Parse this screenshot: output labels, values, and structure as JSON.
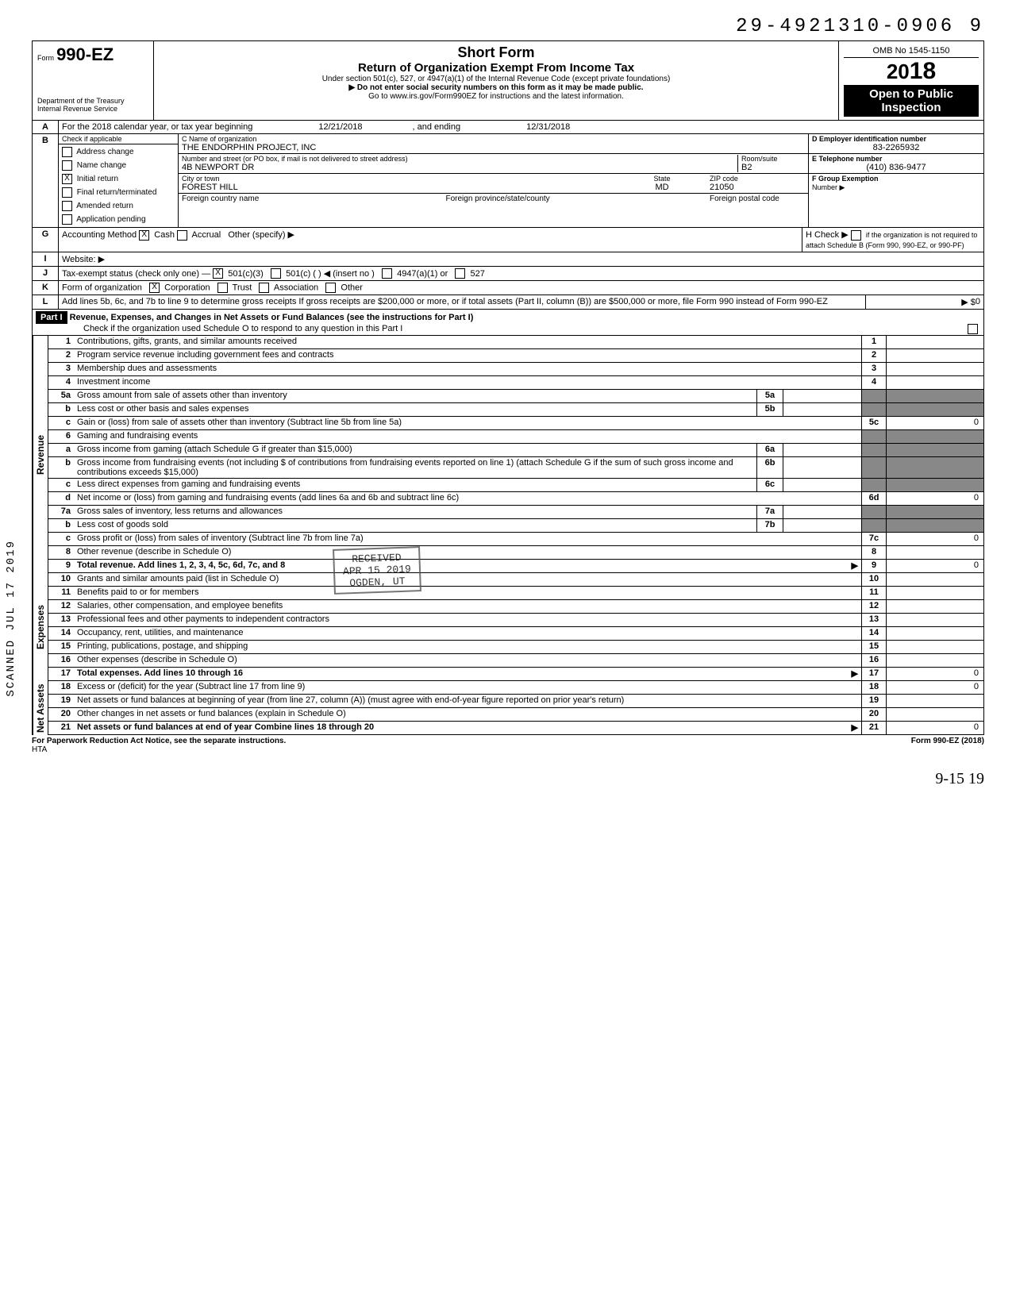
{
  "dln": "29-4921310-0906  9",
  "header": {
    "form_prefix": "Form",
    "form_number": "990-EZ",
    "dept": "Department of the Treasury",
    "irs": "Internal Revenue Service",
    "title1": "Short Form",
    "title2": "Return of Organization Exempt From Income Tax",
    "under": "Under section 501(c), 527, or 4947(a)(1) of the Internal Revenue Code (except private foundations)",
    "ssn_warn": "▶  Do not enter social security numbers on this form as it may be made public.",
    "goto": "Go to www.irs.gov/Form990EZ for instructions and the latest information.",
    "omb": "OMB No 1545-1150",
    "year_prefix": "20",
    "year_bold": "18",
    "open1": "Open to Public",
    "open2": "Inspection"
  },
  "lineA": {
    "label": "For the 2018 calendar year, or tax year beginning",
    "begin": "12/21/2018",
    "mid": ", and ending",
    "end": "12/31/2018"
  },
  "B": {
    "head": "Check if applicable",
    "items": [
      {
        "label": "Address change",
        "checked": false
      },
      {
        "label": "Name change",
        "checked": false
      },
      {
        "label": "Initial return",
        "checked": true
      },
      {
        "label": "Final return/terminated",
        "checked": false
      },
      {
        "label": "Amended return",
        "checked": false
      },
      {
        "label": "Application pending",
        "checked": false
      }
    ]
  },
  "C": {
    "name_label": "C  Name of organization",
    "name": "THE ENDORPHIN PROJECT, INC",
    "addr_label": "Number and street (or PO box, if mail is not delivered to street address)",
    "addr": "4B NEWPORT DR",
    "room_label": "Room/suite",
    "room": "B2",
    "city_label": "City or town",
    "city": "FOREST HILL",
    "state_label": "State",
    "state": "MD",
    "zip_label": "ZIP code",
    "zip": "21050",
    "foreign_country": "Foreign country name",
    "foreign_prov": "Foreign province/state/county",
    "foreign_postal": "Foreign postal code"
  },
  "D": {
    "label": "D  Employer identification number",
    "value": "83-2265932"
  },
  "E": {
    "label": "E  Telephone number",
    "value": "(410) 836-9477"
  },
  "F": {
    "label": "F  Group Exemption",
    "label2": "Number ▶"
  },
  "G": {
    "label": "Accounting Method",
    "cash": "Cash",
    "accrual": "Accrual",
    "other": "Other (specify) ▶"
  },
  "H": {
    "label": "H  Check ▶",
    "text": "if the organization is not required to attach Schedule B (Form 990, 990-EZ, or 990-PF)"
  },
  "I": {
    "label": "Website: ▶"
  },
  "J": {
    "label": "Tax-exempt status (check only one) —",
    "c3": "501(c)(3)",
    "c": "501(c) (",
    "insert": ") ◀ (insert no )",
    "a1": "4947(a)(1) or",
    "s527": "527"
  },
  "K": {
    "label": "Form of organization",
    "corp": "Corporation",
    "trust": "Trust",
    "assoc": "Association",
    "other": "Other"
  },
  "L": {
    "text": "Add lines 5b, 6c, and 7b to line 9 to determine gross receipts  If gross receipts are $200,000 or more, or if total assets (Part II, column (B)) are $500,000 or more, file Form 990 instead of Form 990-EZ",
    "arrow": "▶ $",
    "value": "0"
  },
  "part1": {
    "tag": "Part I",
    "title": "Revenue, Expenses, and Changes in Net Assets or Fund Balances (see the instructions for Part I)",
    "check": "Check if the organization used Schedule O to respond to any question in this Part I"
  },
  "stamp": {
    "l1": "RECEIVED",
    "l2": "APR 15 2019",
    "l3": "OGDEN, UT"
  },
  "side_stamp": "SCANNED  JUL 17 2019",
  "lines": [
    {
      "n": "1",
      "desc": "Contributions, gifts, grants, and similar amounts received",
      "num": "1",
      "amt": ""
    },
    {
      "n": "2",
      "desc": "Program service revenue including government fees and contracts",
      "num": "2",
      "amt": ""
    },
    {
      "n": "3",
      "desc": "Membership dues and assessments",
      "num": "3",
      "amt": ""
    },
    {
      "n": "4",
      "desc": "Investment income",
      "num": "4",
      "amt": ""
    },
    {
      "n": "5a",
      "desc": "Gross amount from sale of assets other than inventory",
      "mid_n": "5a",
      "mid_a": "",
      "shade": true
    },
    {
      "n": "b",
      "desc": "Less  cost or other basis and sales expenses",
      "mid_n": "5b",
      "mid_a": "",
      "shade": true
    },
    {
      "n": "c",
      "desc": "Gain or (loss) from sale of assets other than inventory (Subtract line 5b from line 5a)",
      "num": "5c",
      "amt": "0"
    },
    {
      "n": "6",
      "desc": "Gaming and fundraising events",
      "shade": true
    },
    {
      "n": "a",
      "desc": "Gross income from gaming (attach Schedule G if greater than $15,000)",
      "mid_n": "6a",
      "mid_a": "",
      "shade": true
    },
    {
      "n": "b",
      "desc": "Gross income from fundraising events (not including     $                  of contributions from fundraising events reported on line 1) (attach Schedule G if the sum of such gross income and contributions exceeds $15,000)",
      "mid_n": "6b",
      "mid_a": "",
      "shade": true
    },
    {
      "n": "c",
      "desc": "Less  direct expenses from gaming and fundraising events",
      "mid_n": "6c",
      "mid_a": "",
      "shade": true
    },
    {
      "n": "d",
      "desc": "Net income or (loss) from gaming and fundraising events (add lines 6a and 6b and subtract line 6c)",
      "num": "6d",
      "amt": "0"
    },
    {
      "n": "7a",
      "desc": "Gross sales of inventory, less returns and allowances",
      "mid_n": "7a",
      "mid_a": "",
      "shade": true
    },
    {
      "n": "b",
      "desc": "Less  cost of goods sold",
      "mid_n": "7b",
      "mid_a": "",
      "shade": true
    },
    {
      "n": "c",
      "desc": "Gross profit or (loss) from sales of inventory (Subtract line 7b from line 7a)",
      "num": "7c",
      "amt": "0"
    },
    {
      "n": "8",
      "desc": "Other revenue (describe in Schedule O)",
      "num": "8",
      "amt": ""
    },
    {
      "n": "9",
      "desc": "Total revenue. Add lines 1, 2, 3, 4, 5c, 6d, 7c, and 8",
      "arrow": "▶",
      "num": "9",
      "amt": "0",
      "bold": true
    }
  ],
  "exp_lines": [
    {
      "n": "10",
      "desc": "Grants and similar amounts paid (list in Schedule O)",
      "num": "10",
      "amt": ""
    },
    {
      "n": "11",
      "desc": "Benefits paid to or for members",
      "num": "11",
      "amt": ""
    },
    {
      "n": "12",
      "desc": "Salaries, other compensation, and employee benefits",
      "num": "12",
      "amt": ""
    },
    {
      "n": "13",
      "desc": "Professional fees and other payments to independent contractors",
      "num": "13",
      "amt": ""
    },
    {
      "n": "14",
      "desc": "Occupancy, rent, utilities, and maintenance",
      "num": "14",
      "amt": ""
    },
    {
      "n": "15",
      "desc": "Printing, publications, postage, and shipping",
      "num": "15",
      "amt": ""
    },
    {
      "n": "16",
      "desc": "Other expenses (describe in Schedule O)",
      "num": "16",
      "amt": ""
    },
    {
      "n": "17",
      "desc": "Total expenses. Add lines 10 through 16",
      "arrow": "▶",
      "num": "17",
      "amt": "0",
      "bold": true
    }
  ],
  "na_lines": [
    {
      "n": "18",
      "desc": "Excess or (deficit) for the year (Subtract line 17 from line 9)",
      "num": "18",
      "amt": "0"
    },
    {
      "n": "19",
      "desc": "Net assets or fund balances at beginning of year (from line 27, column (A)) (must agree with end-of-year figure reported on prior year's return)",
      "num": "19",
      "amt": ""
    },
    {
      "n": "20",
      "desc": "Other changes in net assets or fund balances (explain in Schedule O)",
      "num": "20",
      "amt": ""
    },
    {
      "n": "21",
      "desc": "Net assets or fund balances at end of year  Combine lines 18 through 20",
      "arrow": "▶",
      "num": "21",
      "amt": "0",
      "bold": true
    }
  ],
  "footer": {
    "left": "For Paperwork Reduction Act Notice, see the separate instructions.",
    "hta": "HTA",
    "right": "Form 990-EZ (2018)"
  },
  "handwrite": "9-15   19",
  "vert": {
    "rev": "Revenue",
    "exp": "Expenses",
    "na": "Net Assets"
  }
}
